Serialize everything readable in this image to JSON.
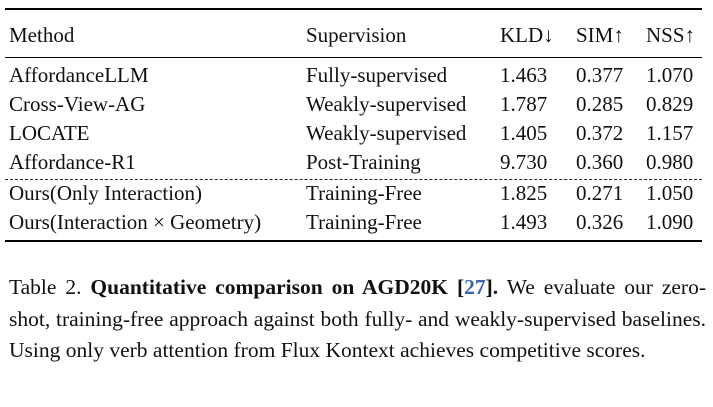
{
  "table": {
    "headers": [
      "Method",
      "Supervision",
      "KLD↓",
      "SIM↑",
      "NSS↑"
    ],
    "rows": [
      [
        "AffordanceLLM",
        "Fully-supervised",
        "1.463",
        "0.377",
        "1.070"
      ],
      [
        "Cross-View-AG",
        "Weakly-supervised",
        "1.787",
        "0.285",
        "0.829"
      ],
      [
        "LOCATE",
        "Weakly-supervised",
        "1.405",
        "0.372",
        "1.157"
      ],
      [
        "Affordance-R1",
        "Post-Training",
        "9.730",
        "0.360",
        "0.980"
      ],
      [
        "Ours(Only Interaction)",
        "Training-Free",
        "1.825",
        "0.271",
        "1.050"
      ],
      [
        "Ours(Interaction × Geometry)",
        "Training-Free",
        "1.493",
        "0.326",
        "1.090"
      ]
    ]
  },
  "caption": {
    "label": "Table 2.",
    "bold_title": "Quantitative comparison on AGD20K [",
    "citation": "27",
    "bold_close": "].",
    "body": "We evaluate our zero-shot, training-free approach against both fully- and weakly-supervised baselines. Using only verb attention from Flux Kontext achieves competitive scores."
  }
}
